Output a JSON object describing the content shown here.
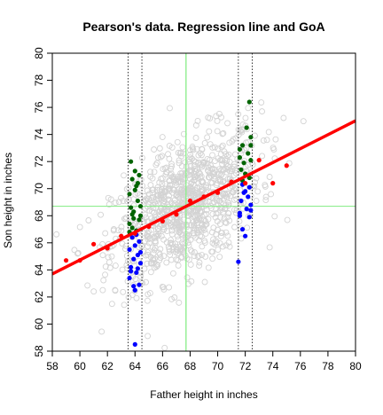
{
  "chart_data": {
    "type": "scatter",
    "title": "Pearson's data. Regression line and GoA",
    "xlabel": "Father height in inches",
    "ylabel": "Son height in inches",
    "xlim": [
      58,
      80
    ],
    "ylim": [
      58,
      80
    ],
    "x_ticks": [
      58,
      60,
      62,
      64,
      66,
      68,
      70,
      72,
      74,
      76,
      78,
      80
    ],
    "y_ticks": [
      58,
      60,
      62,
      64,
      66,
      68,
      70,
      72,
      74,
      76,
      78,
      80
    ],
    "colors": {
      "background_points": "#d3d3d3",
      "regression_line": "#ff0000",
      "reference_lines": "#90ee90",
      "group_mean_points": "#ff0000",
      "sons_above": "#006400",
      "sons_below": "#0000ff",
      "band_lines": "#000000"
    },
    "regression_line": {
      "intercept": 33.89,
      "slope": 0.514
    },
    "mean_father": 67.7,
    "mean_son": 68.7,
    "band_lines_x": [
      63.5,
      64.5,
      71.5,
      72.5
    ],
    "group_means": [
      {
        "x": 59.0,
        "y": 64.7
      },
      {
        "x": 60.0,
        "y": 64.7
      },
      {
        "x": 61.0,
        "y": 65.9
      },
      {
        "x": 62.0,
        "y": 65.6
      },
      {
        "x": 63.0,
        "y": 66.5
      },
      {
        "x": 64.0,
        "y": 66.7
      },
      {
        "x": 65.0,
        "y": 67.2
      },
      {
        "x": 66.0,
        "y": 67.6
      },
      {
        "x": 67.0,
        "y": 68.1
      },
      {
        "x": 68.0,
        "y": 69.1
      },
      {
        "x": 69.0,
        "y": 69.4
      },
      {
        "x": 70.0,
        "y": 69.7
      },
      {
        "x": 71.0,
        "y": 70.5
      },
      {
        "x": 72.0,
        "y": 70.4
      },
      {
        "x": 73.0,
        "y": 72.1
      },
      {
        "x": 74.0,
        "y": 70.4
      },
      {
        "x": 75.0,
        "y": 71.7
      }
    ],
    "selected_above": [
      {
        "x": 63.6,
        "y": 69.6
      },
      {
        "x": 63.8,
        "y": 68.1
      },
      {
        "x": 64.0,
        "y": 71.3
      },
      {
        "x": 64.1,
        "y": 70.2
      },
      {
        "x": 63.7,
        "y": 68.6
      },
      {
        "x": 64.3,
        "y": 71.0
      },
      {
        "x": 63.9,
        "y": 67.8
      },
      {
        "x": 64.2,
        "y": 69.1
      },
      {
        "x": 63.6,
        "y": 67.4
      },
      {
        "x": 64.4,
        "y": 68.7
      },
      {
        "x": 63.8,
        "y": 70.7
      },
      {
        "x": 64.1,
        "y": 66.9
      },
      {
        "x": 63.7,
        "y": 72.0
      },
      {
        "x": 64.3,
        "y": 67.7
      },
      {
        "x": 63.9,
        "y": 68.3
      },
      {
        "x": 64.2,
        "y": 70.4
      },
      {
        "x": 63.6,
        "y": 66.8
      },
      {
        "x": 64.0,
        "y": 69.9
      },
      {
        "x": 64.4,
        "y": 68.0
      },
      {
        "x": 63.8,
        "y": 67.1
      },
      {
        "x": 72.3,
        "y": 76.4
      },
      {
        "x": 72.1,
        "y": 74.5
      },
      {
        "x": 72.4,
        "y": 73.8
      },
      {
        "x": 71.8,
        "y": 73.2
      },
      {
        "x": 71.6,
        "y": 72.9
      },
      {
        "x": 72.2,
        "y": 72.6
      },
      {
        "x": 71.9,
        "y": 71.9
      },
      {
        "x": 72.4,
        "y": 72.1
      },
      {
        "x": 71.7,
        "y": 71.4
      },
      {
        "x": 72.0,
        "y": 71.1
      },
      {
        "x": 72.3,
        "y": 70.8
      },
      {
        "x": 71.6,
        "y": 72.3
      },
      {
        "x": 71.8,
        "y": 70.6
      },
      {
        "x": 72.4,
        "y": 73.2
      }
    ],
    "selected_below": [
      {
        "x": 64.0,
        "y": 58.5
      },
      {
        "x": 64.0,
        "y": 62.5
      },
      {
        "x": 64.3,
        "y": 62.9
      },
      {
        "x": 63.6,
        "y": 63.4
      },
      {
        "x": 64.1,
        "y": 63.8
      },
      {
        "x": 63.7,
        "y": 64.2
      },
      {
        "x": 64.4,
        "y": 64.5
      },
      {
        "x": 63.9,
        "y": 64.8
      },
      {
        "x": 64.2,
        "y": 65.1
      },
      {
        "x": 63.6,
        "y": 65.5
      },
      {
        "x": 64.0,
        "y": 65.8
      },
      {
        "x": 64.3,
        "y": 66.1
      },
      {
        "x": 63.8,
        "y": 66.4
      },
      {
        "x": 64.1,
        "y": 66.6
      },
      {
        "x": 63.7,
        "y": 63.9
      },
      {
        "x": 64.4,
        "y": 65.3
      },
      {
        "x": 63.9,
        "y": 62.8
      },
      {
        "x": 64.2,
        "y": 64.1
      },
      {
        "x": 71.5,
        "y": 64.6
      },
      {
        "x": 72.0,
        "y": 66.5
      },
      {
        "x": 71.8,
        "y": 67.0
      },
      {
        "x": 72.3,
        "y": 67.9
      },
      {
        "x": 71.6,
        "y": 68.2
      },
      {
        "x": 72.1,
        "y": 68.5
      },
      {
        "x": 72.4,
        "y": 68.8
      },
      {
        "x": 71.7,
        "y": 69.1
      },
      {
        "x": 72.2,
        "y": 69.4
      },
      {
        "x": 71.9,
        "y": 69.7
      },
      {
        "x": 72.3,
        "y": 70.1
      },
      {
        "x": 71.6,
        "y": 68.0
      },
      {
        "x": 72.0,
        "y": 69.8
      },
      {
        "x": 71.8,
        "y": 70.3
      },
      {
        "x": 72.4,
        "y": 68.4
      }
    ]
  }
}
